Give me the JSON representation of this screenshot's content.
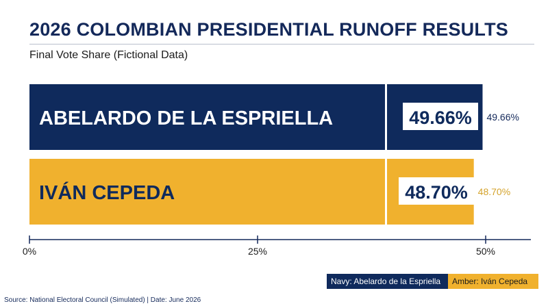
{
  "header": {
    "title": "2026 COLOMBIAN PRESIDENTIAL RUNOFF RESULTS",
    "subtitle": "Final Vote Share (Fictional Data)"
  },
  "chart_data": {
    "type": "bar",
    "orientation": "horizontal",
    "categories": [
      "ABELARDO DE LA ESPRIELLA",
      "IVÁN CEPEDA"
    ],
    "values": [
      49.66,
      48.7
    ],
    "value_labels": [
      "49.66%",
      "48.70%"
    ],
    "colors": [
      "#0f2a5c",
      "#f0b12e"
    ],
    "xlim": [
      0,
      50
    ],
    "x_ticks": [
      0,
      25,
      50
    ],
    "x_tick_labels": [
      "0%",
      "25%",
      "50%"
    ],
    "grid": false
  },
  "legend": {
    "navy": "Navy: Abelardo de la Espriella",
    "amber": "Amber: Iván Cepeda"
  },
  "footer": {
    "source": "Source: National Electoral Council (Simulated) | Date: June 2026"
  }
}
